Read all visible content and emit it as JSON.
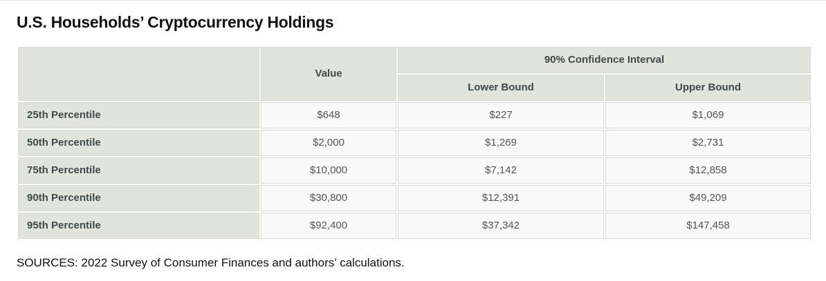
{
  "page": {
    "title": "U.S. Households’ Cryptocurrency Holdings",
    "source_note": "SOURCES: 2022 Survey of Consumer Finances and authors’ calculations."
  },
  "theme": {
    "header_cell_bg": "#e0e4dc",
    "data_cell_bg": "#f8f9f8",
    "cell_border": "#d8d8d7",
    "header_text": "#40484a",
    "value_text": "#515553"
  },
  "table": {
    "headers": {
      "corner": "",
      "value": "Value",
      "ci_group": "90% Confidence Interval",
      "lower": "Lower Bound",
      "upper": "Upper Bound"
    },
    "rows": [
      {
        "label": "25th Percentile",
        "value": "$648",
        "lower": "$227",
        "upper": "$1,069"
      },
      {
        "label": "50th Percentile",
        "value": "$2,000",
        "lower": "$1,269",
        "upper": "$2,731"
      },
      {
        "label": "75th Percentile",
        "value": "$10,000",
        "lower": "$7,142",
        "upper": "$12,858"
      },
      {
        "label": "90th Percentile",
        "value": "$30,800",
        "lower": "$12,391",
        "upper": "$49,209"
      },
      {
        "label": "95th Percentile",
        "value": "$92,400",
        "lower": "$37,342",
        "upper": "$147,458"
      }
    ]
  },
  "chart_data": {
    "type": "table",
    "title": "U.S. Households’ Cryptocurrency Holdings",
    "categories": [
      "25th Percentile",
      "50th Percentile",
      "75th Percentile",
      "90th Percentile",
      "95th Percentile"
    ],
    "series": [
      {
        "name": "Value",
        "values": [
          648,
          2000,
          10000,
          30800,
          92400
        ]
      },
      {
        "name": "90% Confidence Interval - Lower Bound",
        "values": [
          227,
          1269,
          7142,
          12391,
          37342
        ]
      },
      {
        "name": "90% Confidence Interval - Upper Bound",
        "values": [
          1069,
          2731,
          12858,
          49209,
          147458
        ]
      }
    ],
    "units": "USD",
    "source": "SOURCES: 2022 Survey of Consumer Finances and authors’ calculations."
  }
}
